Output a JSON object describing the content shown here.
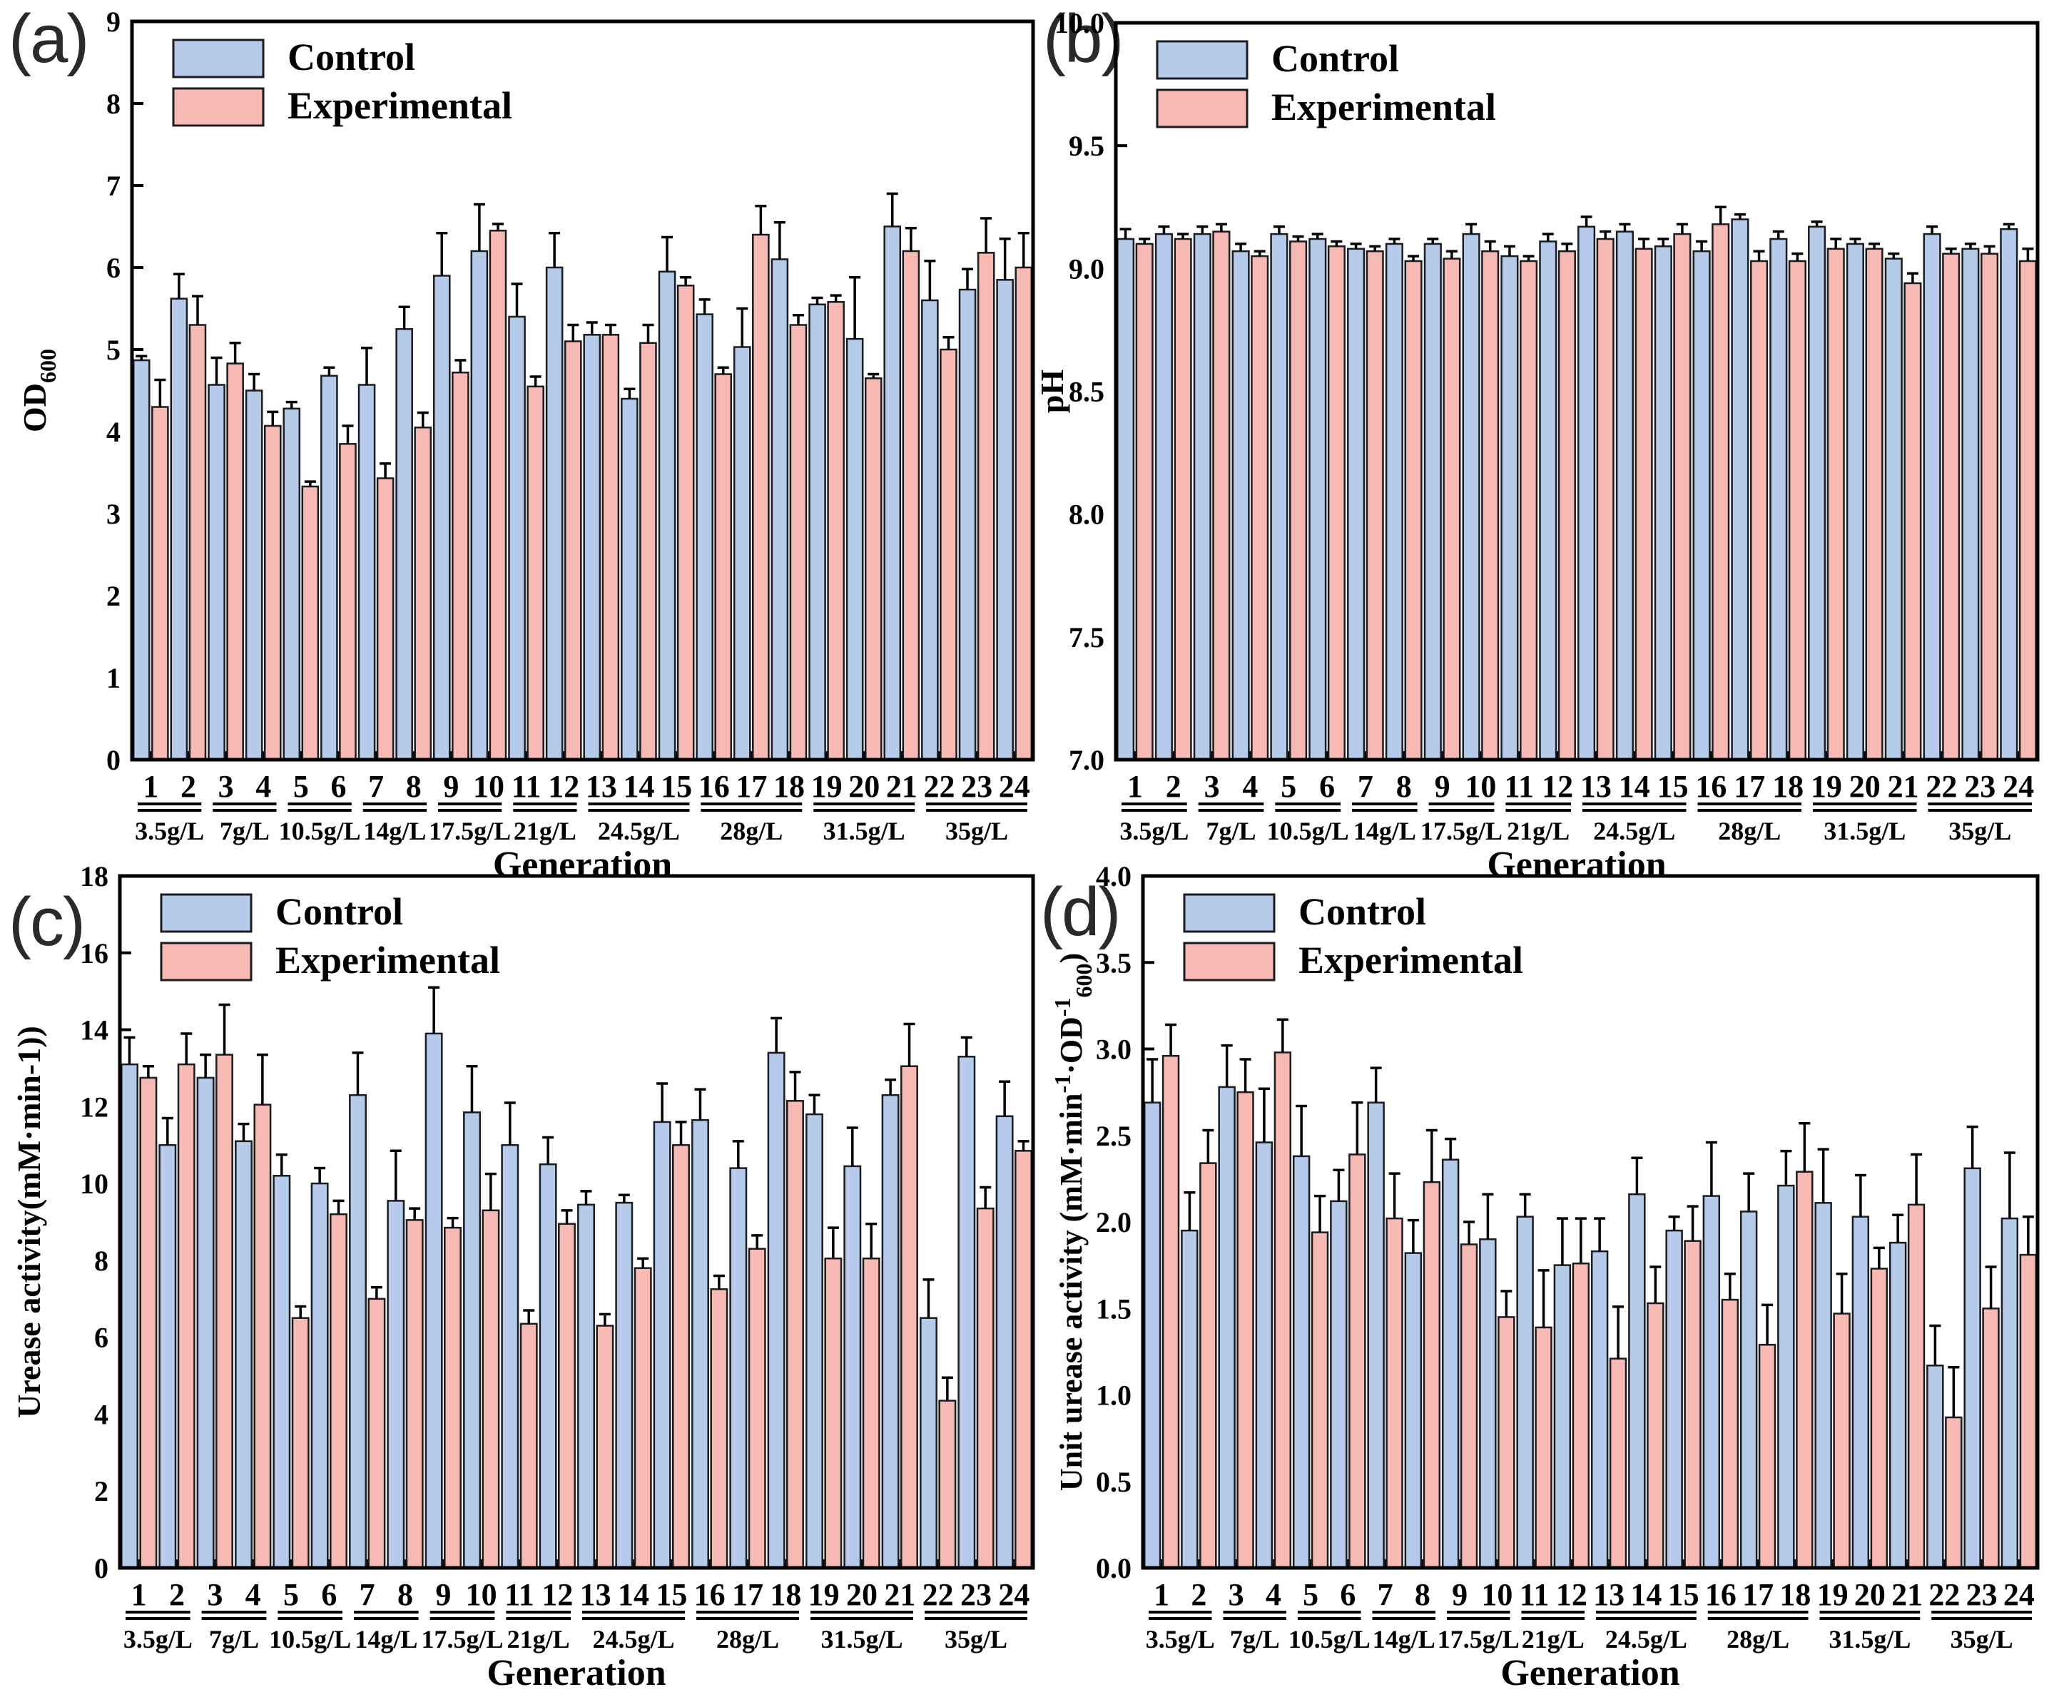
{
  "figure": {
    "xlabel": "Generation",
    "legend": [
      "Control",
      "Experimental"
    ],
    "colors": {
      "control_fill": "#b5cbe9",
      "experimental_fill": "#f6b9b4",
      "bar_edge": "#1b1b22",
      "axis": "#000000",
      "text": "#000000"
    }
  },
  "chart_data": [
    {
      "panel_label": "(a)",
      "type": "bar",
      "title": "",
      "xlabel": "Generation",
      "ylabel": "OD600",
      "ylabel_runs": [
        {
          "t": "OD"
        },
        {
          "t": "600",
          "pos": "sub"
        }
      ],
      "ylim": [
        0,
        9
      ],
      "ystep": 1,
      "ydecimals": 0,
      "grid": false,
      "legend_position": "top-left",
      "categories": [
        1,
        2,
        3,
        4,
        5,
        6,
        7,
        8,
        9,
        10,
        11,
        12,
        13,
        14,
        15,
        16,
        17,
        18,
        19,
        20,
        21,
        22,
        23,
        24
      ],
      "groups": [
        {
          "label": "3.5g/L",
          "gens": [
            1,
            2
          ]
        },
        {
          "label": "7g/L",
          "gens": [
            3,
            4
          ]
        },
        {
          "label": "10.5g/L",
          "gens": [
            5,
            6
          ]
        },
        {
          "label": "14g/L",
          "gens": [
            7,
            8
          ]
        },
        {
          "label": "17.5g/L",
          "gens": [
            9,
            10
          ]
        },
        {
          "label": "21g/L",
          "gens": [
            11,
            12
          ]
        },
        {
          "label": "24.5g/L",
          "gens": [
            13,
            14,
            15
          ]
        },
        {
          "label": "28g/L",
          "gens": [
            16,
            17,
            18
          ]
        },
        {
          "label": "31.5g/L",
          "gens": [
            19,
            20,
            21
          ]
        },
        {
          "label": "35g/L",
          "gens": [
            22,
            23,
            24
          ]
        }
      ],
      "series": [
        {
          "name": "Control",
          "color": "#b5cbe9",
          "values": [
            4.87,
            5.62,
            4.57,
            4.5,
            4.28,
            4.68,
            4.57,
            5.25,
            5.9,
            6.2,
            5.4,
            6.0,
            5.18,
            4.4,
            5.95,
            5.43,
            5.03,
            6.1,
            5.55,
            5.13,
            6.5,
            5.6,
            5.73,
            5.85
          ],
          "errors": [
            0.05,
            0.3,
            0.33,
            0.2,
            0.08,
            0.1,
            0.45,
            0.27,
            0.52,
            0.57,
            0.4,
            0.42,
            0.15,
            0.12,
            0.42,
            0.18,
            0.47,
            0.45,
            0.08,
            0.75,
            0.4,
            0.48,
            0.25,
            0.5
          ]
        },
        {
          "name": "Experimental",
          "color": "#f6b9b4",
          "values": [
            4.3,
            5.3,
            4.83,
            4.07,
            3.33,
            3.85,
            3.43,
            4.05,
            4.72,
            6.45,
            4.55,
            5.1,
            5.18,
            5.08,
            5.78,
            4.7,
            6.4,
            5.3,
            5.58,
            4.65,
            6.2,
            5.0,
            6.18,
            6.0
          ],
          "errors": [
            0.33,
            0.35,
            0.25,
            0.17,
            0.06,
            0.22,
            0.18,
            0.18,
            0.15,
            0.08,
            0.12,
            0.2,
            0.12,
            0.22,
            0.1,
            0.08,
            0.35,
            0.12,
            0.08,
            0.05,
            0.28,
            0.15,
            0.42,
            0.42
          ]
        }
      ]
    },
    {
      "panel_label": "(b)",
      "type": "bar",
      "title": "",
      "xlabel": "Generation",
      "ylabel": "pH",
      "ylabel_runs": [
        {
          "t": "pH"
        }
      ],
      "ylim": [
        7.0,
        10.0
      ],
      "ystep": 0.5,
      "ydecimals": 1,
      "grid": false,
      "legend_position": "top-left",
      "categories": [
        1,
        2,
        3,
        4,
        5,
        6,
        7,
        8,
        9,
        10,
        11,
        12,
        13,
        14,
        15,
        16,
        17,
        18,
        19,
        20,
        21,
        22,
        23,
        24
      ],
      "groups": [
        {
          "label": "3.5g/L",
          "gens": [
            1,
            2
          ]
        },
        {
          "label": "7g/L",
          "gens": [
            3,
            4
          ]
        },
        {
          "label": "10.5g/L",
          "gens": [
            5,
            6
          ]
        },
        {
          "label": "14g/L",
          "gens": [
            7,
            8
          ]
        },
        {
          "label": "17.5g/L",
          "gens": [
            9,
            10
          ]
        },
        {
          "label": "21g/L",
          "gens": [
            11,
            12
          ]
        },
        {
          "label": "24.5g/L",
          "gens": [
            13,
            14,
            15
          ]
        },
        {
          "label": "28g/L",
          "gens": [
            16,
            17,
            18
          ]
        },
        {
          "label": "31.5g/L",
          "gens": [
            19,
            20,
            21
          ]
        },
        {
          "label": "35g/L",
          "gens": [
            22,
            23,
            24
          ]
        }
      ],
      "series": [
        {
          "name": "Control",
          "color": "#b5cbe9",
          "values": [
            9.12,
            9.14,
            9.14,
            9.07,
            9.14,
            9.12,
            9.08,
            9.1,
            9.1,
            9.14,
            9.05,
            9.11,
            9.17,
            9.15,
            9.09,
            9.07,
            9.2,
            9.12,
            9.17,
            9.1,
            9.04,
            9.14,
            9.08,
            9.16
          ],
          "errors": [
            0.04,
            0.03,
            0.03,
            0.03,
            0.03,
            0.02,
            0.02,
            0.02,
            0.02,
            0.04,
            0.04,
            0.03,
            0.04,
            0.03,
            0.03,
            0.04,
            0.02,
            0.03,
            0.02,
            0.02,
            0.02,
            0.03,
            0.02,
            0.02
          ]
        },
        {
          "name": "Experimental",
          "color": "#f6b9b4",
          "values": [
            9.1,
            9.12,
            9.15,
            9.05,
            9.11,
            9.09,
            9.07,
            9.03,
            9.04,
            9.07,
            9.03,
            9.07,
            9.12,
            9.08,
            9.14,
            9.18,
            9.03,
            9.03,
            9.08,
            9.08,
            8.94,
            9.06,
            9.06,
            9.03
          ],
          "errors": [
            0.02,
            0.02,
            0.03,
            0.02,
            0.02,
            0.02,
            0.02,
            0.02,
            0.03,
            0.04,
            0.02,
            0.03,
            0.03,
            0.04,
            0.04,
            0.07,
            0.04,
            0.03,
            0.04,
            0.02,
            0.04,
            0.02,
            0.03,
            0.05
          ]
        }
      ]
    },
    {
      "panel_label": "(c)",
      "type": "bar",
      "title": "",
      "xlabel": "Generation",
      "ylabel": "Urease activity(mM·min-1))",
      "ylabel_runs": [
        {
          "t": "Urease activity(mM·min-1))"
        }
      ],
      "ylim": [
        0,
        18
      ],
      "ystep": 2,
      "ydecimals": 0,
      "grid": false,
      "legend_position": "top-left",
      "categories": [
        1,
        2,
        3,
        4,
        5,
        6,
        7,
        8,
        9,
        10,
        11,
        12,
        13,
        14,
        15,
        16,
        17,
        18,
        19,
        20,
        21,
        22,
        23,
        24
      ],
      "groups": [
        {
          "label": "3.5g/L",
          "gens": [
            1,
            2
          ]
        },
        {
          "label": "7g/L",
          "gens": [
            3,
            4
          ]
        },
        {
          "label": "10.5g/L",
          "gens": [
            5,
            6
          ]
        },
        {
          "label": "14g/L",
          "gens": [
            7,
            8
          ]
        },
        {
          "label": "17.5g/L",
          "gens": [
            9,
            10
          ]
        },
        {
          "label": "21g/L",
          "gens": [
            11,
            12
          ]
        },
        {
          "label": "24.5g/L",
          "gens": [
            13,
            14,
            15
          ]
        },
        {
          "label": "28g/L",
          "gens": [
            16,
            17,
            18
          ]
        },
        {
          "label": "31.5g/L",
          "gens": [
            19,
            20,
            21
          ]
        },
        {
          "label": "35g/L",
          "gens": [
            22,
            23,
            24
          ]
        }
      ],
      "series": [
        {
          "name": "Control",
          "color": "#b5cbe9",
          "values": [
            13.1,
            11.0,
            12.75,
            11.1,
            10.2,
            10.0,
            12.3,
            9.55,
            13.9,
            11.85,
            11.0,
            10.5,
            9.45,
            9.5,
            11.6,
            11.65,
            10.4,
            13.4,
            11.8,
            10.45,
            12.3,
            6.5,
            13.3,
            11.75
          ],
          "errors": [
            0.7,
            0.7,
            0.6,
            0.45,
            0.55,
            0.4,
            1.1,
            1.3,
            1.2,
            1.2,
            1.1,
            0.7,
            0.35,
            0.2,
            1.0,
            0.8,
            0.7,
            0.9,
            0.5,
            1.0,
            0.4,
            1.0,
            0.5,
            0.9
          ]
        },
        {
          "name": "Experimental",
          "color": "#f6b9b4",
          "values": [
            12.75,
            13.1,
            13.35,
            12.05,
            6.5,
            9.2,
            7.0,
            9.05,
            8.85,
            9.3,
            6.35,
            8.95,
            6.3,
            7.8,
            11.0,
            7.25,
            8.3,
            12.15,
            8.05,
            8.05,
            13.05,
            4.35,
            9.35,
            10.85
          ],
          "errors": [
            0.3,
            0.8,
            1.3,
            1.3,
            0.3,
            0.35,
            0.3,
            0.3,
            0.25,
            0.95,
            0.35,
            0.35,
            0.3,
            0.25,
            0.6,
            0.35,
            0.35,
            0.75,
            0.8,
            0.9,
            1.1,
            0.6,
            0.55,
            0.25
          ]
        }
      ]
    },
    {
      "panel_label": "(d)",
      "type": "bar",
      "title": "",
      "xlabel": "Generation",
      "ylabel": "Unit urease activity (mM·min-1·OD-1 600)",
      "ylabel_runs": [
        {
          "t": "Unit urease activity (mM·min"
        },
        {
          "t": "-1",
          "pos": "sup"
        },
        {
          "t": "·OD"
        },
        {
          "t": "-1",
          "pos": "sup"
        },
        {
          "t": "600",
          "pos": "sub"
        },
        {
          "t": ")"
        }
      ],
      "ylim": [
        0.0,
        4.0
      ],
      "ystep": 0.5,
      "ydecimals": 1,
      "grid": false,
      "legend_position": "top-left",
      "categories": [
        1,
        2,
        3,
        4,
        5,
        6,
        7,
        8,
        9,
        10,
        11,
        12,
        13,
        14,
        15,
        16,
        17,
        18,
        19,
        20,
        21,
        22,
        23,
        24
      ],
      "groups": [
        {
          "label": "3.5g/L",
          "gens": [
            1,
            2
          ]
        },
        {
          "label": "7g/L",
          "gens": [
            3,
            4
          ]
        },
        {
          "label": "10.5g/L",
          "gens": [
            5,
            6
          ]
        },
        {
          "label": "14g/L",
          "gens": [
            7,
            8
          ]
        },
        {
          "label": "17.5g/L",
          "gens": [
            9,
            10
          ]
        },
        {
          "label": "21g/L",
          "gens": [
            11,
            12
          ]
        },
        {
          "label": "24.5g/L",
          "gens": [
            13,
            14,
            15
          ]
        },
        {
          "label": "28g/L",
          "gens": [
            16,
            17,
            18
          ]
        },
        {
          "label": "31.5g/L",
          "gens": [
            19,
            20,
            21
          ]
        },
        {
          "label": "35g/L",
          "gens": [
            22,
            23,
            24
          ]
        }
      ],
      "series": [
        {
          "name": "Control",
          "color": "#b5cbe9",
          "values": [
            2.69,
            1.95,
            2.78,
            2.46,
            2.38,
            2.12,
            2.69,
            1.82,
            2.36,
            1.9,
            2.03,
            1.75,
            1.83,
            2.16,
            1.95,
            2.15,
            2.06,
            2.21,
            2.11,
            2.03,
            1.88,
            1.17,
            2.31,
            2.02
          ],
          "errors": [
            0.25,
            0.22,
            0.24,
            0.31,
            0.29,
            0.18,
            0.2,
            0.19,
            0.12,
            0.26,
            0.13,
            0.27,
            0.19,
            0.21,
            0.08,
            0.31,
            0.22,
            0.2,
            0.31,
            0.24,
            0.16,
            0.23,
            0.24,
            0.38
          ]
        },
        {
          "name": "Experimental",
          "color": "#f6b9b4",
          "values": [
            2.96,
            2.34,
            2.75,
            2.98,
            1.94,
            2.39,
            2.02,
            2.23,
            1.87,
            1.45,
            1.39,
            1.76,
            1.21,
            1.53,
            1.89,
            1.55,
            1.29,
            2.29,
            1.47,
            1.73,
            2.1,
            0.87,
            1.5,
            1.81
          ],
          "errors": [
            0.18,
            0.19,
            0.19,
            0.19,
            0.21,
            0.3,
            0.26,
            0.3,
            0.13,
            0.15,
            0.33,
            0.26,
            0.3,
            0.21,
            0.2,
            0.15,
            0.23,
            0.28,
            0.23,
            0.12,
            0.29,
            0.29,
            0.24,
            0.22
          ]
        }
      ]
    }
  ]
}
